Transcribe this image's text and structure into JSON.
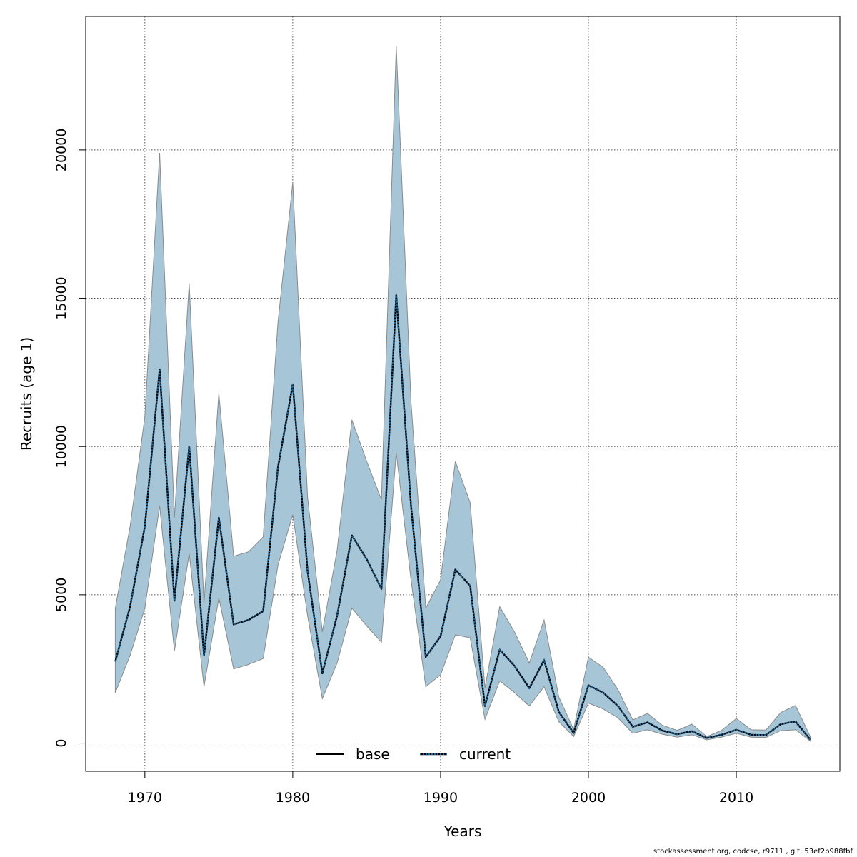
{
  "chart_data": {
    "type": "line",
    "title": "",
    "xlabel": "Years",
    "ylabel": "Recruits (age 1)",
    "xlim": [
      1966,
      2017
    ],
    "ylim": [
      -950,
      24500
    ],
    "x_ticks": [
      1970,
      1980,
      1990,
      2000,
      2010
    ],
    "y_ticks": [
      0,
      5000,
      10000,
      15000,
      20000
    ],
    "x_tick_labels": [
      "1970",
      "1980",
      "1990",
      "2000",
      "2010"
    ],
    "y_tick_labels": [
      "0",
      "5000",
      "10000",
      "15000",
      "20000"
    ],
    "grid": true,
    "legend": {
      "position": "bottom-center",
      "entries": [
        "base",
        "current"
      ]
    },
    "colors": {
      "band": "#a6c6d8",
      "band_edge": "#8a8a8a",
      "base": "#000000",
      "current": "#000000",
      "current_dots": "#1b6aa3"
    },
    "x": [
      1968,
      1969,
      1970,
      1971,
      1972,
      1973,
      1974,
      1975,
      1976,
      1977,
      1978,
      1979,
      1980,
      1981,
      1982,
      1983,
      1984,
      1985,
      1986,
      1987,
      1988,
      1989,
      1990,
      1991,
      1992,
      1993,
      1994,
      1995,
      1996,
      1997,
      1998,
      1999,
      2000,
      2001,
      2002,
      2003,
      2004,
      2005,
      2006,
      2007,
      2008,
      2009,
      2010,
      2011,
      2012,
      2013,
      2014,
      2015
    ],
    "series": [
      {
        "name": "base",
        "style": "solid",
        "values": [
          2750,
          4600,
          7300,
          12600,
          4800,
          10000,
          2950,
          7600,
          4000,
          4150,
          4450,
          9300,
          12100,
          5800,
          2350,
          4300,
          7000,
          6200,
          5200,
          15100,
          8000,
          2900,
          3600,
          5850,
          5300,
          1250,
          3150,
          2600,
          1850,
          2800,
          1050,
          340,
          1950,
          1700,
          1250,
          550,
          700,
          420,
          300,
          400,
          170,
          280,
          450,
          280,
          270,
          640,
          730,
          120
        ]
      },
      {
        "name": "current",
        "style": "dotted",
        "values": [
          2750,
          4600,
          7300,
          12600,
          4800,
          10000,
          2950,
          7600,
          4000,
          4150,
          4450,
          9300,
          12100,
          5800,
          2350,
          4300,
          7000,
          6200,
          5200,
          15100,
          8000,
          2900,
          3600,
          5850,
          5300,
          1250,
          3150,
          2600,
          1850,
          2800,
          1050,
          340,
          1950,
          1700,
          1250,
          550,
          700,
          420,
          300,
          400,
          170,
          280,
          450,
          280,
          270,
          640,
          730,
          120
        ]
      }
    ],
    "band": {
      "upper": [
        4550,
        7300,
        11000,
        19900,
        7600,
        15500,
        4700,
        11800,
        6300,
        6450,
        6950,
        14200,
        18900,
        8300,
        3750,
        6500,
        10900,
        9500,
        8200,
        23500,
        11500,
        4550,
        5500,
        9500,
        8100,
        1850,
        4600,
        3750,
        2700,
        4150,
        1550,
        460,
        2900,
        2550,
        1800,
        780,
        1000,
        600,
        430,
        640,
        220,
        430,
        830,
        450,
        440,
        1030,
        1270,
        220
      ],
      "lower": [
        1700,
        2950,
        4550,
        8000,
        3100,
        6400,
        1900,
        4900,
        2500,
        2650,
        2850,
        6000,
        7700,
        4300,
        1500,
        2700,
        4550,
        3950,
        3400,
        9800,
        5500,
        1900,
        2300,
        3650,
        3550,
        800,
        2100,
        1700,
        1250,
        1900,
        720,
        220,
        1350,
        1150,
        850,
        330,
        450,
        300,
        200,
        280,
        110,
        200,
        330,
        200,
        190,
        420,
        450,
        70
      ]
    }
  },
  "footer": "stockassessment.org, codcse, r9711 , git: 53ef2b988fbf"
}
